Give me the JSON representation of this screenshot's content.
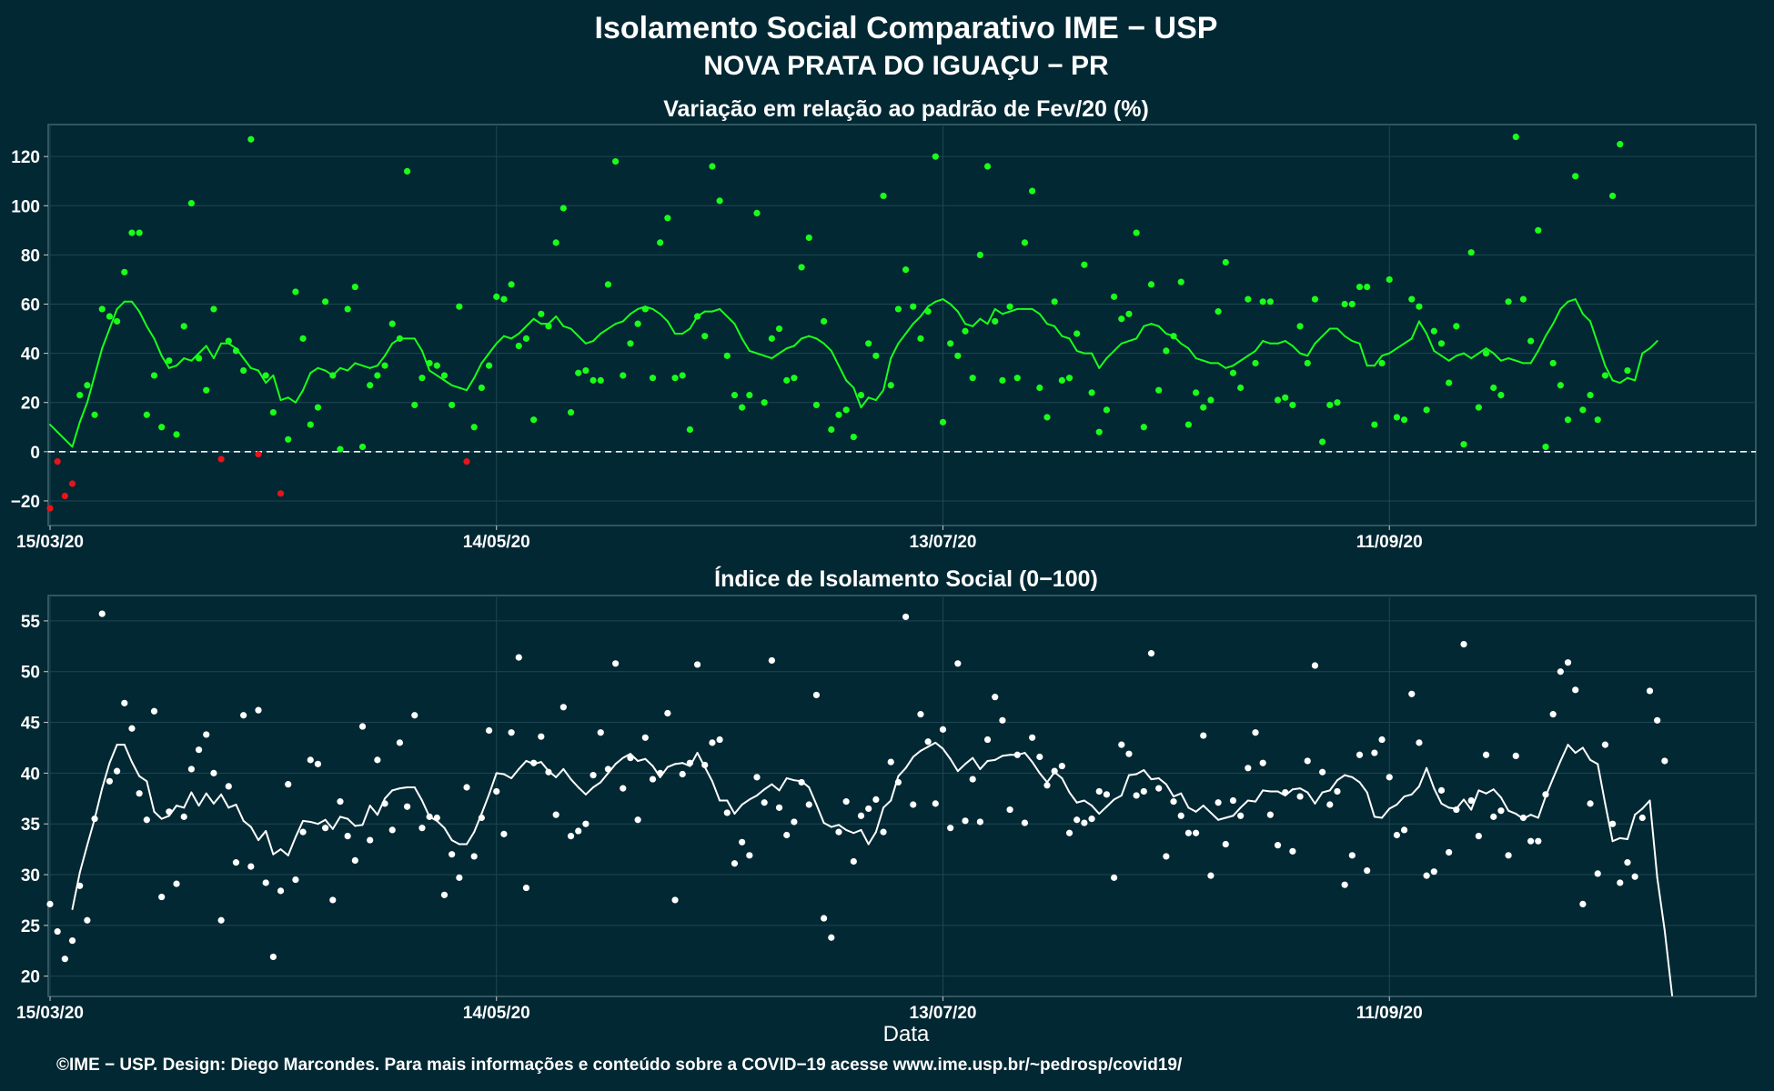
{
  "title": "Isolamento Social Comparativo IME − USP",
  "subtitle": "NOVA PRATA DO IGUAÇU − PR",
  "footer": "©IME − USP. Design: Diego Marcondes. Para mais informações e conteúdo sobre a COVID−19 acesse www.ime.usp.br/~pedrosp/covid19/",
  "colors": {
    "background": "#022833",
    "positive": "#1aff1a",
    "negative": "#e8141a",
    "index": "#ffffff",
    "grid": "#1e4652",
    "axis_text": "#ffffff"
  },
  "chart_data": [
    {
      "type": "scatter",
      "title": "Variação em relação ao padrão de Fev/20 (%)",
      "xlabel": "",
      "ylabel": "",
      "x_start": "15/03/20",
      "x_end": "30/10/20",
      "x_tick_labels": [
        "15/03/20",
        "14/05/20",
        "13/07/20",
        "11/09/20"
      ],
      "y_ticks": [
        -20,
        0,
        20,
        40,
        60,
        80,
        100,
        120
      ],
      "ylim": [
        -30,
        133
      ],
      "reference_line": 0,
      "points": [
        -23,
        -4,
        -18,
        -13,
        23,
        27,
        15,
        58,
        55,
        53,
        73,
        89,
        89,
        15,
        31,
        10,
        37,
        7,
        51,
        101,
        38,
        25,
        58,
        -3,
        45,
        41,
        33,
        127,
        -1,
        31,
        16,
        -17,
        5,
        65,
        46,
        11,
        18,
        61,
        31,
        1,
        58,
        67,
        2,
        27,
        31,
        35,
        52,
        46,
        114,
        19,
        30,
        36,
        35,
        31,
        19,
        59,
        -4,
        10,
        26,
        35,
        63,
        62,
        68,
        43,
        46,
        13,
        56,
        51,
        85,
        99,
        16,
        32,
        33,
        29,
        29,
        68,
        118,
        31,
        44,
        52,
        58,
        30,
        85,
        95,
        30,
        31,
        9,
        55,
        47,
        116,
        102,
        39,
        23,
        18,
        23,
        97,
        20,
        46,
        50,
        29,
        30,
        75,
        87,
        19,
        53,
        9,
        15,
        17,
        6,
        23,
        44,
        39,
        104,
        27,
        58,
        74,
        59,
        46,
        57,
        120,
        12,
        44,
        39,
        49,
        30,
        80,
        116,
        53,
        29,
        59,
        30,
        85,
        106,
        26,
        14,
        61,
        29,
        30,
        48,
        76,
        24,
        8,
        17,
        63,
        54,
        56,
        89,
        10,
        68,
        25,
        41,
        47,
        69,
        11,
        24,
        18,
        21,
        57,
        77,
        32,
        26,
        62,
        36,
        61,
        61,
        21,
        22,
        19,
        51,
        36,
        62,
        4,
        19,
        20,
        60,
        60,
        67,
        67,
        11,
        36,
        70,
        14,
        13,
        62,
        59,
        17,
        49,
        44,
        28,
        51,
        3,
        81,
        18,
        40,
        26,
        23,
        61,
        128,
        62,
        45,
        90,
        2,
        36,
        27,
        13,
        112,
        17,
        23,
        13,
        31,
        104,
        125,
        33
      ],
      "moving_average": [
        11,
        8,
        5,
        2,
        12,
        20,
        31,
        42,
        50,
        58,
        61,
        61,
        57,
        51,
        46,
        39,
        34,
        35,
        38,
        37,
        40,
        43,
        38,
        44,
        44,
        42,
        38,
        34,
        33,
        28,
        31,
        21,
        22,
        20,
        25,
        32,
        34,
        33,
        31,
        34,
        33,
        36,
        35,
        34,
        35,
        39,
        44,
        46,
        46,
        46,
        41,
        33,
        31,
        29,
        27,
        26,
        25,
        30,
        36,
        40,
        44,
        47,
        46,
        48,
        51,
        54,
        52,
        52,
        55,
        51,
        50,
        47,
        44,
        45,
        48,
        50,
        52,
        53,
        56,
        58,
        59,
        58,
        56,
        53,
        48,
        48,
        50,
        55,
        57,
        57,
        58,
        55,
        52,
        46,
        41,
        40,
        39,
        38,
        40,
        42,
        43,
        46,
        47,
        46,
        44,
        41,
        35,
        29,
        26,
        18,
        22,
        21,
        25,
        38,
        44,
        48,
        52,
        55,
        59,
        61,
        62,
        60,
        57,
        52,
        51,
        54,
        52,
        58,
        56,
        57,
        58,
        58,
        58,
        56,
        52,
        51,
        47,
        46,
        41,
        40,
        40,
        34,
        38,
        41,
        44,
        45,
        46,
        51,
        52,
        51,
        48,
        47,
        44,
        42,
        38,
        37,
        36,
        36,
        34,
        35,
        37,
        39,
        41,
        45,
        44,
        44,
        45,
        43,
        40,
        39,
        44,
        47,
        50,
        50,
        47,
        45,
        44,
        35,
        35,
        39,
        40,
        42,
        44,
        46,
        53,
        48,
        41,
        39,
        37,
        39,
        40,
        38,
        40,
        42,
        40,
        37,
        38,
        37,
        36,
        36,
        41,
        47,
        52,
        58,
        61,
        62,
        56,
        53,
        44,
        35,
        29,
        28,
        30,
        29,
        40,
        42,
        45,
        null,
        null
      ],
      "color_rule": "green when value >= 0, red when value < 0"
    },
    {
      "type": "scatter",
      "title": "Índice de Isolamento Social (0−100)",
      "xlabel": "Data",
      "ylabel": "",
      "x_start": "15/03/20",
      "x_end": "30/10/20",
      "x_tick_labels": [
        "15/03/20",
        "14/05/20",
        "13/07/20",
        "11/09/20"
      ],
      "y_ticks": [
        20,
        25,
        30,
        35,
        40,
        45,
        50,
        55
      ],
      "ylim": [
        18,
        57.5
      ],
      "points": [
        27.1,
        24.4,
        21.7,
        23.5,
        28.9,
        25.5,
        35.5,
        55.7,
        39.2,
        40.2,
        46.9,
        44.4,
        38.0,
        35.4,
        46.1,
        27.8,
        36.2,
        29.1,
        35.7,
        40.4,
        42.3,
        43.8,
        40.0,
        25.5,
        38.7,
        31.2,
        45.7,
        30.8,
        46.2,
        29.2,
        21.9,
        28.4,
        38.9,
        29.5,
        34.2,
        41.3,
        40.9,
        34.6,
        27.5,
        37.2,
        33.8,
        31.4,
        44.6,
        33.4,
        41.3,
        37.0,
        34.4,
        43.0,
        36.7,
        45.7,
        34.6,
        35.7,
        35.6,
        28.0,
        32.0,
        29.7,
        38.6,
        31.8,
        35.6,
        44.2,
        38.2,
        34.0,
        44.0,
        51.4,
        28.7,
        41.0,
        43.6,
        40.1,
        35.9,
        46.5,
        33.8,
        34.3,
        35.0,
        39.8,
        44.0,
        40.4,
        50.8,
        38.5,
        41.5,
        35.4,
        43.5,
        39.4,
        40.0,
        45.9,
        27.5,
        39.9,
        41.0,
        50.7,
        40.8,
        43.0,
        43.3,
        36.1,
        31.1,
        33.2,
        31.9,
        39.6,
        37.1,
        51.1,
        36.6,
        33.9,
        35.2,
        39.1,
        36.9,
        47.7,
        25.7,
        23.8,
        34.2,
        37.2,
        31.3,
        35.8,
        36.5,
        37.4,
        34.2,
        41.1,
        39.1,
        55.4,
        36.9,
        45.8,
        43.1,
        37.0,
        44.3,
        34.6,
        50.8,
        35.3,
        39.4,
        35.2,
        43.3,
        47.5,
        45.2,
        36.4,
        41.8,
        35.1,
        43.5,
        41.6,
        38.8,
        40.2,
        40.7,
        34.1,
        35.4,
        35.1,
        35.5,
        38.2,
        37.9,
        29.7,
        42.8,
        41.9,
        37.8,
        38.2,
        51.8,
        38.5,
        31.8,
        37.2,
        35.8,
        34.1,
        34.1,
        43.7,
        29.9,
        37.1,
        33.0,
        37.3,
        35.8,
        40.5,
        44.0,
        41.0,
        35.9,
        32.9,
        38.1,
        32.3,
        37.7,
        41.2,
        50.6,
        40.1,
        36.9,
        38.2,
        29.0,
        31.9,
        41.8,
        30.4,
        42.0,
        43.3,
        39.6,
        33.9,
        34.4,
        47.8,
        43.0,
        29.9,
        30.3,
        38.3,
        32.2,
        36.4,
        52.7,
        37.3,
        33.8,
        41.8,
        35.7,
        36.3,
        31.9,
        41.7,
        35.6,
        33.3,
        33.3,
        37.9,
        45.8,
        50.0,
        50.9,
        48.2,
        27.1,
        37.0,
        30.1,
        42.8,
        35.0,
        29.2,
        31.2,
        29.8,
        35.6,
        48.1,
        45.2,
        41.2
      ],
      "moving_average": [
        null,
        null,
        null,
        26.6,
        30.2,
        32.9,
        35.5,
        38.5,
        41.0,
        42.8,
        42.8,
        41.1,
        39.7,
        39.2,
        36.2,
        35.5,
        35.8,
        36.8,
        36.6,
        38.1,
        36.8,
        38.0,
        37.0,
        37.9,
        36.6,
        36.9,
        35.3,
        34.7,
        33.4,
        34.3,
        32.0,
        32.5,
        31.9,
        33.7,
        35.3,
        35.2,
        35.0,
        35.4,
        34.5,
        35.7,
        35.5,
        34.8,
        34.9,
        36.8,
        35.9,
        37.5,
        38.3,
        38.5,
        38.6,
        38.6,
        37.3,
        35.7,
        35.3,
        34.6,
        33.4,
        33.0,
        33.0,
        34.2,
        36.0,
        37.9,
        40.0,
        39.9,
        39.5,
        40.4,
        41.2,
        40.9,
        41.1,
        40.2,
        39.6,
        40.4,
        39.4,
        38.6,
        37.9,
        38.6,
        39.1,
        40.0,
        40.9,
        41.5,
        41.9,
        41.2,
        41.4,
        40.7,
        39.6,
        40.6,
        40.9,
        41.0,
        40.7,
        42.0,
        40.6,
        39.2,
        37.3,
        37.3,
        36.0,
        36.9,
        37.4,
        37.8,
        38.4,
        38.9,
        38.3,
        39.5,
        39.3,
        39.2,
        38.6,
        36.9,
        35.1,
        34.7,
        34.9,
        34.4,
        34.1,
        34.4,
        33.0,
        34.2,
        36.6,
        37.3,
        39.7,
        40.5,
        41.6,
        42.2,
        42.6,
        43.0,
        42.4,
        41.4,
        40.2,
        40.9,
        41.5,
        40.4,
        41.2,
        41.3,
        41.7,
        41.8,
        41.8,
        42.0,
        41.1,
        40.0,
        39.1,
        40.1,
        39.5,
        38.1,
        37.1,
        37.3,
        36.8,
        36.0,
        36.7,
        37.4,
        37.8,
        39.8,
        39.9,
        40.3,
        39.4,
        39.5,
        38.9,
        37.7,
        38.0,
        36.6,
        36.2,
        36.8,
        36.1,
        35.4,
        35.6,
        35.8,
        36.6,
        37.3,
        37.2,
        38.3,
        38.2,
        38.2,
        37.8,
        38.4,
        38.5,
        38.1,
        37.0,
        38.1,
        38.3,
        39.3,
        39.8,
        39.6,
        39.1,
        38.1,
        35.7,
        35.6,
        36.5,
        36.9,
        37.7,
        37.9,
        38.7,
        40.5,
        38.5,
        37.0,
        36.6,
        36.5,
        37.4,
        36.4,
        38.3,
        38.0,
        38.4,
        37.6,
        36.3,
        36.0,
        35.5,
        35.9,
        35.6,
        37.7,
        39.5,
        41.2,
        42.8,
        42.0,
        42.5,
        41.3,
        40.9,
        37.0,
        33.3,
        33.6,
        33.5,
        35.9,
        36.5,
        37.3,
        29.7,
        24.5,
        18.1
      ]
    }
  ]
}
